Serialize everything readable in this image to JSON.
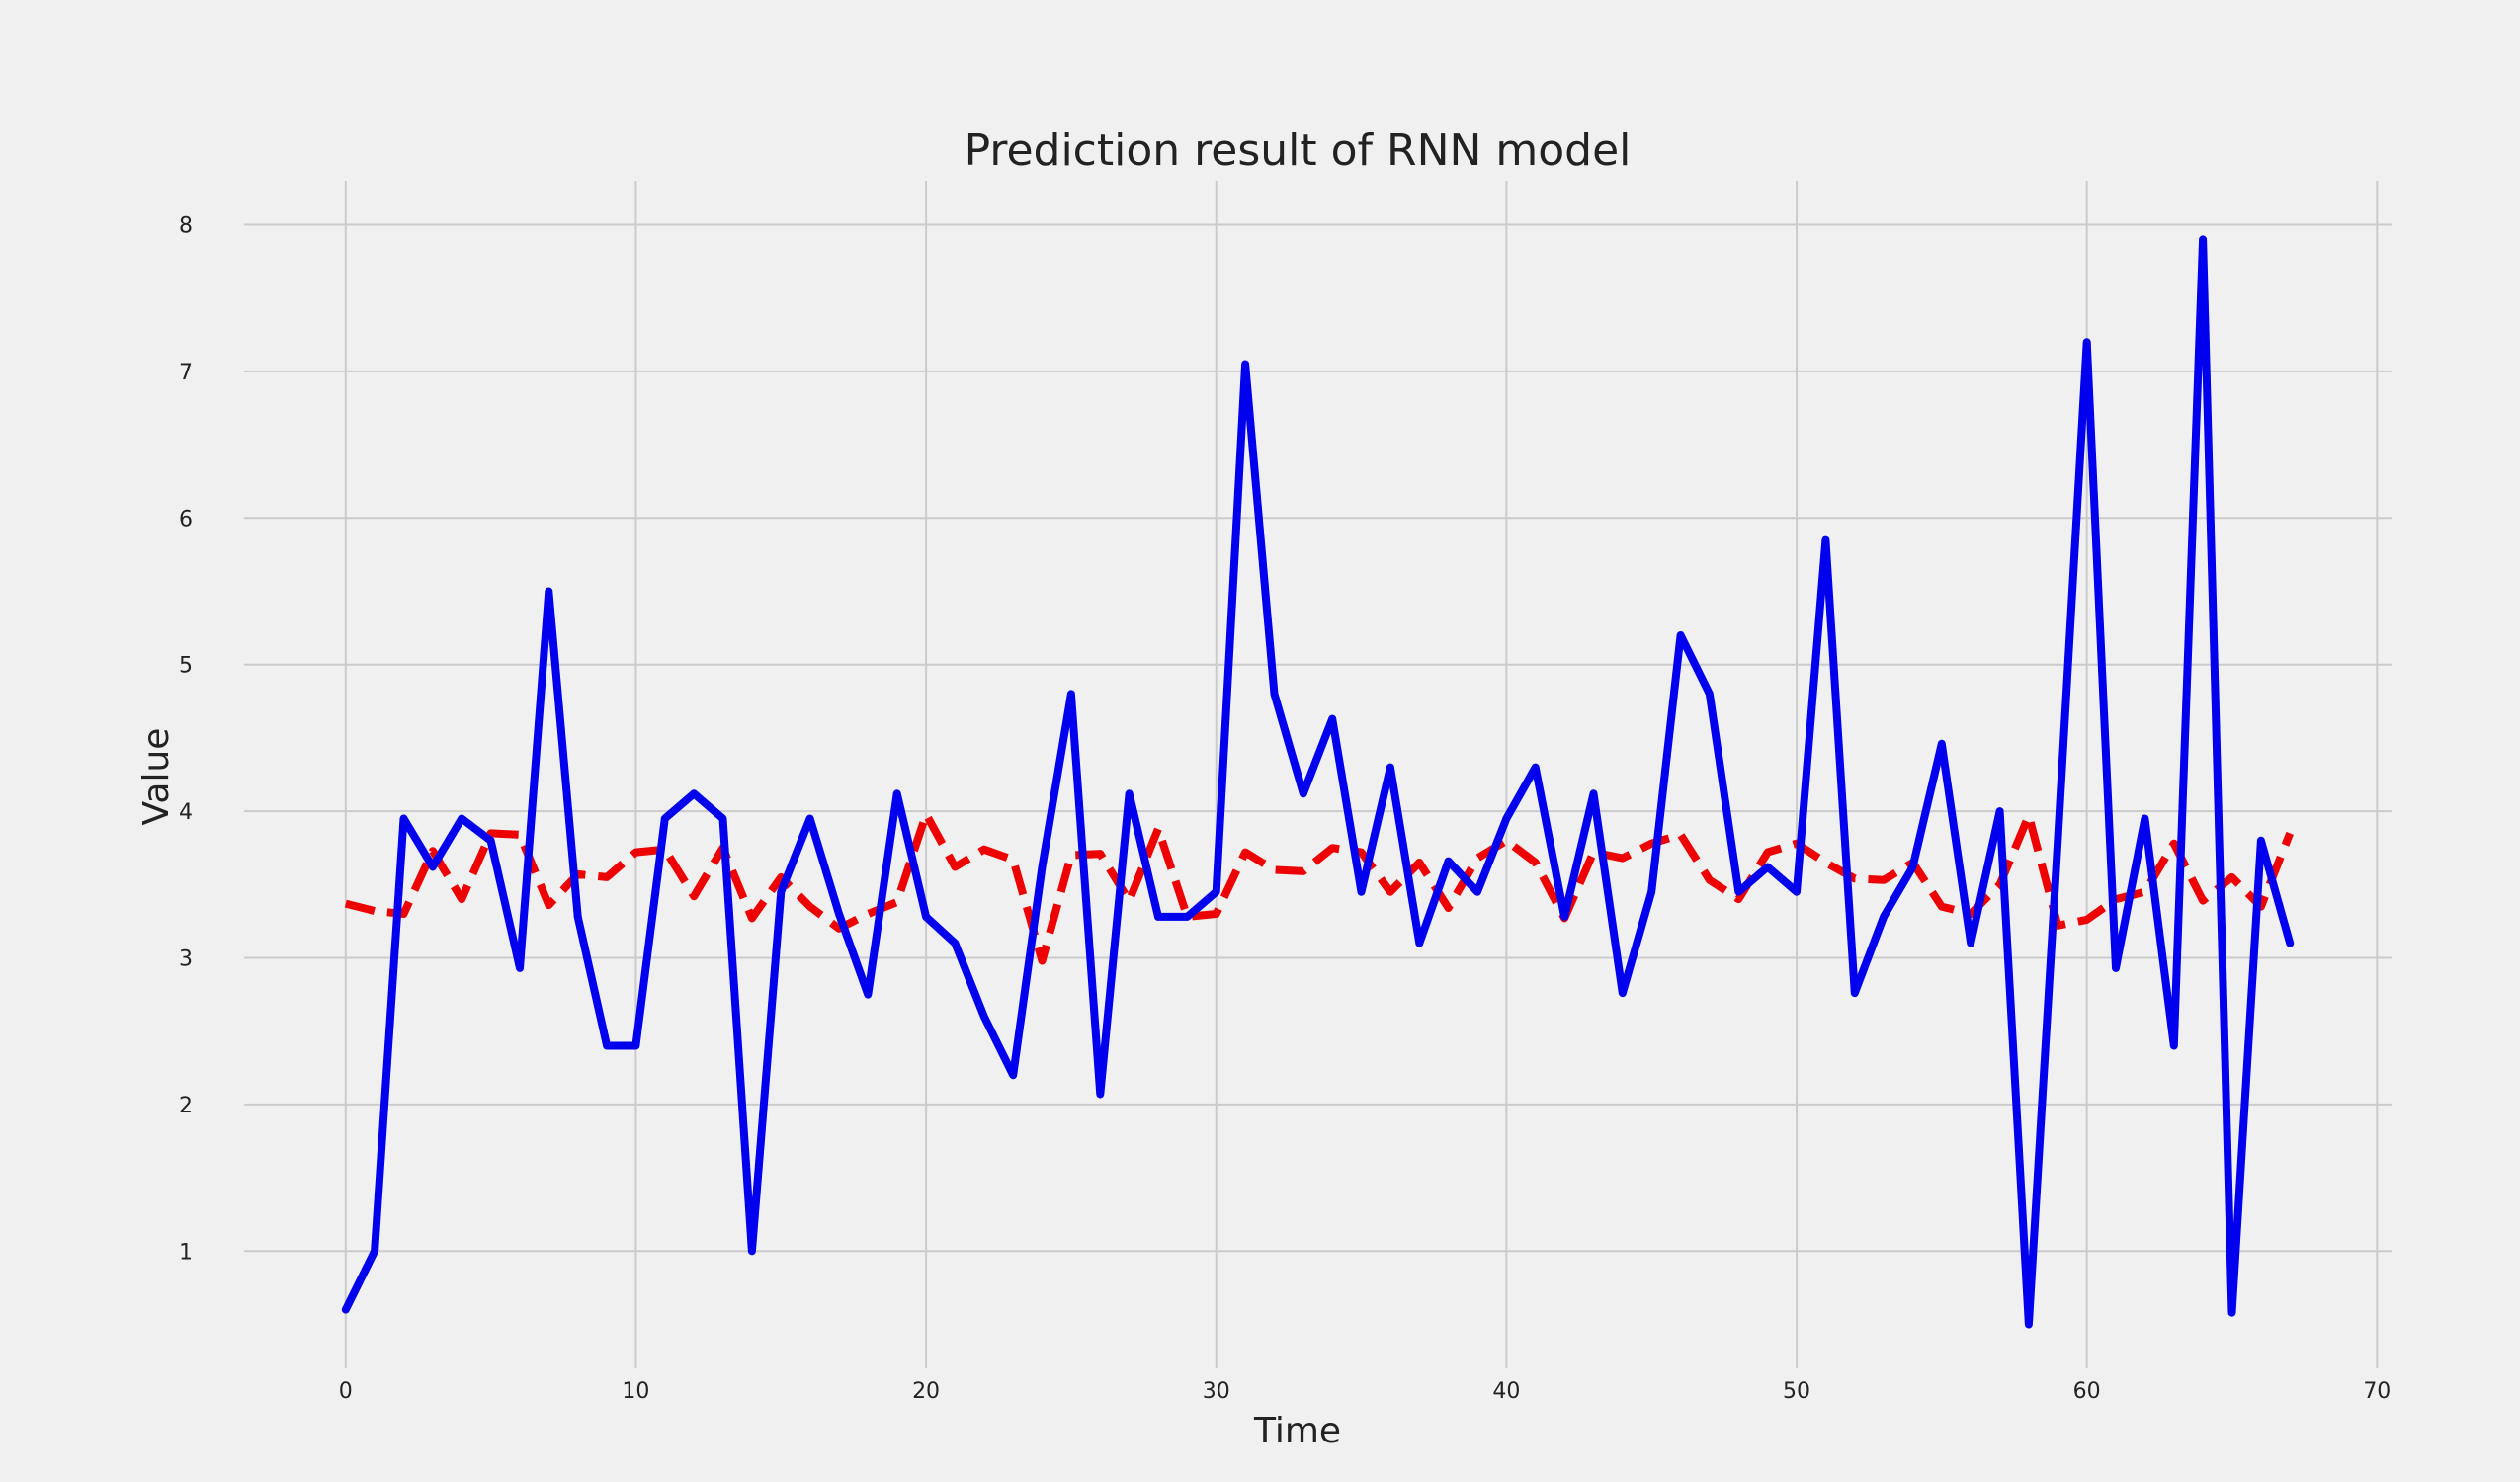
{
  "chart_data": {
    "type": "line",
    "title": "Prediction result of RNN model",
    "xlabel": "Time",
    "ylabel": "Value",
    "xlim": [
      -3.5,
      70.5
    ],
    "ylim": [
      0.2,
      8.3
    ],
    "xticks": [
      0,
      10,
      20,
      30,
      40,
      50,
      60,
      70
    ],
    "yticks": [
      1,
      2,
      3,
      4,
      5,
      6,
      7,
      8
    ],
    "grid": true,
    "x": [
      0,
      1,
      2,
      3,
      4,
      5,
      6,
      7,
      8,
      9,
      10,
      11,
      12,
      13,
      14,
      15,
      16,
      17,
      18,
      19,
      20,
      21,
      22,
      23,
      24,
      25,
      26,
      27,
      28,
      29,
      30,
      31,
      32,
      33,
      34,
      35,
      36,
      37,
      38,
      39,
      40,
      41,
      42,
      43,
      44,
      45,
      46,
      47,
      48,
      49,
      50,
      51,
      52,
      53,
      54,
      55,
      56,
      57,
      58,
      59,
      60,
      61,
      62,
      63,
      64,
      65,
      66,
      67
    ],
    "series": [
      {
        "color": "#0000ee",
        "style": "solid",
        "values": [
          0.6,
          1.0,
          3.95,
          3.62,
          3.95,
          3.8,
          2.93,
          5.5,
          3.28,
          2.4,
          2.4,
          3.95,
          4.12,
          3.95,
          1.0,
          3.45,
          3.95,
          3.3,
          2.75,
          4.12,
          3.28,
          3.1,
          2.6,
          2.2,
          3.62,
          4.8,
          2.07,
          4.12,
          3.28,
          3.28,
          3.45,
          7.05,
          4.8,
          4.12,
          4.63,
          3.45,
          4.3,
          3.1,
          3.66,
          3.45,
          3.95,
          4.3,
          3.28,
          4.12,
          2.76,
          3.45,
          5.2,
          4.8,
          3.45,
          3.62,
          3.45,
          5.85,
          2.76,
          3.28,
          3.62,
          4.46,
          3.1,
          4.0,
          0.5,
          3.8,
          7.2,
          2.93,
          3.95,
          2.4,
          7.9,
          0.58,
          3.8,
          3.1
        ]
      },
      {
        "color": "#ee0000",
        "style": "dashed",
        "values": [
          3.37,
          3.32,
          3.3,
          3.73,
          3.4,
          3.85,
          3.84,
          3.36,
          3.57,
          3.55,
          3.72,
          3.74,
          3.42,
          3.75,
          3.27,
          3.55,
          3.35,
          3.2,
          3.3,
          3.38,
          3.98,
          3.62,
          3.74,
          3.67,
          2.98,
          3.7,
          3.71,
          3.39,
          3.88,
          3.28,
          3.3,
          3.72,
          3.6,
          3.59,
          3.75,
          3.72,
          3.45,
          3.65,
          3.34,
          3.68,
          3.8,
          3.65,
          3.27,
          3.72,
          3.68,
          3.78,
          3.84,
          3.53,
          3.4,
          3.72,
          3.78,
          3.65,
          3.54,
          3.53,
          3.65,
          3.35,
          3.3,
          3.5,
          3.97,
          3.22,
          3.26,
          3.4,
          3.45,
          3.78,
          3.39,
          3.55,
          3.35,
          3.85
        ]
      }
    ]
  }
}
